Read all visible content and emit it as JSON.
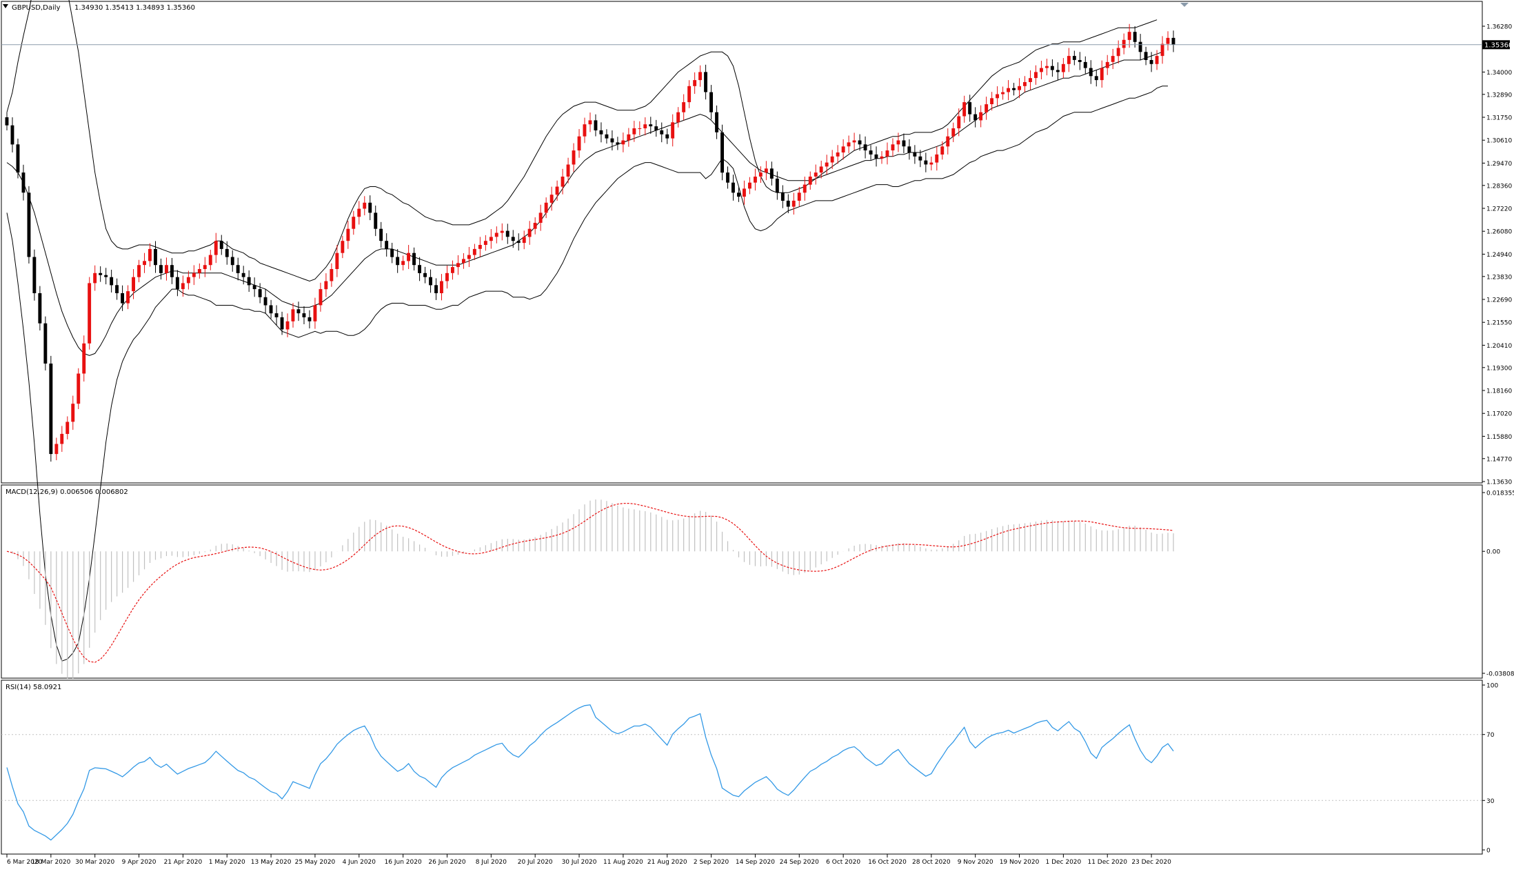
{
  "chart_header": {
    "symbol_label": "GBPUSD,Daily",
    "ohlc_label": "1.34930 1.35413 1.34893 1.35360"
  },
  "macd_header": {
    "label": "MACD(12,26,9) 0.006506 0.006802"
  },
  "rsi_header": {
    "label": "RSI(14) 58.0921"
  },
  "current_price_label": "1.35360",
  "colors": {
    "bull": "#e81010",
    "bear": "#000000",
    "band": "#000000",
    "macd_hist": "#c0c0c0",
    "macd_signal": "#e81010",
    "rsi_line": "#3399e6",
    "level_line": "#c0c0c0",
    "price_line": "#8a9aaa"
  },
  "chart_data": [
    {
      "type": "candlestick",
      "title": "GBPUSD,Daily",
      "x_dates": [
        "2020-03-06",
        "2020-03-09",
        "2020-03-10",
        "2020-03-11",
        "2020-03-12",
        "2020-03-13",
        "2020-03-16",
        "2020-03-17",
        "2020-03-18",
        "2020-03-19",
        "2020-03-20",
        "2020-03-23",
        "2020-03-24",
        "2020-03-25",
        "2020-03-26",
        "2020-03-27",
        "2020-03-30",
        "2020-03-31",
        "2020-04-01",
        "2020-04-02",
        "2020-04-03",
        "2020-04-06",
        "2020-04-07",
        "2020-04-08",
        "2020-04-09",
        "2020-04-10",
        "2020-04-13",
        "2020-04-14",
        "2020-04-15",
        "2020-04-16",
        "2020-04-17",
        "2020-04-20",
        "2020-04-21",
        "2020-04-22",
        "2020-04-23",
        "2020-04-24",
        "2020-04-27",
        "2020-04-28",
        "2020-04-29",
        "2020-04-30",
        "2020-05-01",
        "2020-05-04",
        "2020-05-05",
        "2020-05-06",
        "2020-05-07",
        "2020-05-08",
        "2020-05-11",
        "2020-05-12",
        "2020-05-13",
        "2020-05-14",
        "2020-05-15",
        "2020-05-18",
        "2020-05-19",
        "2020-05-20",
        "2020-05-21",
        "2020-05-22",
        "2020-05-25",
        "2020-05-26",
        "2020-05-27",
        "2020-05-28",
        "2020-05-29",
        "2020-06-01",
        "2020-06-02",
        "2020-06-03",
        "2020-06-04",
        "2020-06-05",
        "2020-06-08",
        "2020-06-09",
        "2020-06-10",
        "2020-06-11",
        "2020-06-12",
        "2020-06-15",
        "2020-06-16",
        "2020-06-17",
        "2020-06-18",
        "2020-06-19",
        "2020-06-22",
        "2020-06-23",
        "2020-06-24",
        "2020-06-25",
        "2020-06-26",
        "2020-06-29",
        "2020-06-30",
        "2020-07-01",
        "2020-07-02",
        "2020-07-03",
        "2020-07-06",
        "2020-07-07",
        "2020-07-08",
        "2020-07-09",
        "2020-07-10",
        "2020-07-13",
        "2020-07-14",
        "2020-07-15",
        "2020-07-16",
        "2020-07-17",
        "2020-07-20",
        "2020-07-21",
        "2020-07-22",
        "2020-07-23",
        "2020-07-24",
        "2020-07-27",
        "2020-07-28",
        "2020-07-29",
        "2020-07-30",
        "2020-07-31",
        "2020-08-03",
        "2020-08-04",
        "2020-08-05",
        "2020-08-06",
        "2020-08-07",
        "2020-08-10",
        "2020-08-11",
        "2020-08-12",
        "2020-08-13",
        "2020-08-14",
        "2020-08-17",
        "2020-08-18",
        "2020-08-19",
        "2020-08-20",
        "2020-08-21",
        "2020-08-24",
        "2020-08-25",
        "2020-08-26",
        "2020-08-27",
        "2020-08-28",
        "2020-08-31",
        "2020-09-01",
        "2020-09-02",
        "2020-09-03",
        "2020-09-04",
        "2020-09-07",
        "2020-09-08",
        "2020-09-09",
        "2020-09-10",
        "2020-09-11",
        "2020-09-14",
        "2020-09-15",
        "2020-09-16",
        "2020-09-17",
        "2020-09-18",
        "2020-09-21",
        "2020-09-22",
        "2020-09-23",
        "2020-09-24",
        "2020-09-25",
        "2020-09-28",
        "2020-09-29",
        "2020-09-30",
        "2020-10-01",
        "2020-10-02",
        "2020-10-05",
        "2020-10-06",
        "2020-10-07",
        "2020-10-08",
        "2020-10-09",
        "2020-10-12",
        "2020-10-13",
        "2020-10-14",
        "2020-10-15",
        "2020-10-16",
        "2020-10-19",
        "2020-10-20",
        "2020-10-21",
        "2020-10-22",
        "2020-10-23",
        "2020-10-26",
        "2020-10-27",
        "2020-10-28",
        "2020-10-29",
        "2020-10-30",
        "2020-11-02",
        "2020-11-03",
        "2020-11-04",
        "2020-11-05",
        "2020-11-06",
        "2020-11-09",
        "2020-11-10",
        "2020-11-11",
        "2020-11-12",
        "2020-11-13",
        "2020-11-16",
        "2020-11-17",
        "2020-11-18",
        "2020-11-19",
        "2020-11-20",
        "2020-11-23",
        "2020-11-24",
        "2020-11-25",
        "2020-11-26",
        "2020-11-27",
        "2020-11-30",
        "2020-12-01",
        "2020-12-02",
        "2020-12-03",
        "2020-12-04",
        "2020-12-07",
        "2020-12-08",
        "2020-12-09",
        "2020-12-10",
        "2020-12-11",
        "2020-12-14",
        "2020-12-15",
        "2020-12-16",
        "2020-12-17",
        "2020-12-18",
        "2020-12-21",
        "2020-12-22",
        "2020-12-23",
        "2020-12-24",
        "2020-12-25",
        "2020-12-28",
        "2020-12-29"
      ],
      "close": [
        1.3135,
        1.304,
        1.29,
        1.28,
        1.248,
        1.23,
        1.215,
        1.195,
        1.15,
        1.155,
        1.16,
        1.166,
        1.175,
        1.19,
        1.205,
        1.235,
        1.24,
        1.239,
        1.238,
        1.234,
        1.23,
        1.225,
        1.231,
        1.238,
        1.244,
        1.246,
        1.252,
        1.244,
        1.24,
        1.244,
        1.238,
        1.232,
        1.235,
        1.238,
        1.24,
        1.242,
        1.244,
        1.249,
        1.256,
        1.252,
        1.248,
        1.244,
        1.24,
        1.238,
        1.234,
        1.232,
        1.228,
        1.224,
        1.22,
        1.218,
        1.212,
        1.216,
        1.222,
        1.22,
        1.218,
        1.216,
        1.224,
        1.232,
        1.236,
        1.242,
        1.25,
        1.256,
        1.262,
        1.268,
        1.272,
        1.275,
        1.27,
        1.262,
        1.256,
        1.252,
        1.248,
        1.244,
        1.246,
        1.25,
        1.244,
        1.24,
        1.238,
        1.234,
        1.23,
        1.236,
        1.24,
        1.243,
        1.245,
        1.247,
        1.249,
        1.252,
        1.254,
        1.256,
        1.258,
        1.26,
        1.261,
        1.258,
        1.256,
        1.255,
        1.258,
        1.262,
        1.265,
        1.27,
        1.275,
        1.279,
        1.283,
        1.288,
        1.294,
        1.301,
        1.308,
        1.314,
        1.316,
        1.311,
        1.309,
        1.307,
        1.305,
        1.304,
        1.306,
        1.309,
        1.312,
        1.312,
        1.314,
        1.313,
        1.311,
        1.309,
        1.307,
        1.315,
        1.32,
        1.325,
        1.333,
        1.336,
        1.34,
        1.33,
        1.32,
        1.31,
        1.29,
        1.285,
        1.28,
        1.278,
        1.282,
        1.285,
        1.288,
        1.29,
        1.292,
        1.287,
        1.28,
        1.276,
        1.273,
        1.276,
        1.28,
        1.284,
        1.288,
        1.29,
        1.293,
        1.295,
        1.298,
        1.3,
        1.303,
        1.305,
        1.306,
        1.304,
        1.301,
        1.299,
        1.297,
        1.298,
        1.301,
        1.304,
        1.306,
        1.303,
        1.3,
        1.298,
        1.296,
        1.294,
        1.295,
        1.299,
        1.303,
        1.308,
        1.312,
        1.318,
        1.325,
        1.319,
        1.316,
        1.32,
        1.324,
        1.327,
        1.329,
        1.33,
        1.332,
        1.331,
        1.333,
        1.335,
        1.337,
        1.34,
        1.342,
        1.343,
        1.341,
        1.34,
        1.344,
        1.348,
        1.346,
        1.345,
        1.342,
        1.338,
        1.336,
        1.342,
        1.345,
        1.348,
        1.352,
        1.356,
        1.36,
        1.355,
        1.35,
        1.346,
        1.344,
        1.348,
        1.354,
        1.357,
        1.3536
      ],
      "bollinger_upper": [
        1.32,
        1.33,
        1.345,
        1.358,
        1.37,
        1.385,
        1.4,
        1.41,
        1.41,
        1.405,
        1.395,
        1.38,
        1.365,
        1.35,
        1.33,
        1.31,
        1.29,
        1.275,
        1.262,
        1.256,
        1.253,
        1.252,
        1.252,
        1.253,
        1.254,
        1.254,
        1.254,
        1.253,
        1.252,
        1.251,
        1.25,
        1.25,
        1.25,
        1.251,
        1.251,
        1.252,
        1.253,
        1.254,
        1.256,
        1.256,
        1.254,
        1.252,
        1.251,
        1.25,
        1.248,
        1.247,
        1.245,
        1.244,
        1.243,
        1.242,
        1.241,
        1.24,
        1.239,
        1.238,
        1.237,
        1.236,
        1.237,
        1.24,
        1.243,
        1.247,
        1.253,
        1.26,
        1.267,
        1.273,
        1.278,
        1.282,
        1.283,
        1.283,
        1.282,
        1.28,
        1.279,
        1.277,
        1.275,
        1.274,
        1.272,
        1.27,
        1.268,
        1.267,
        1.266,
        1.266,
        1.265,
        1.264,
        1.264,
        1.264,
        1.264,
        1.265,
        1.266,
        1.267,
        1.269,
        1.271,
        1.273,
        1.276,
        1.28,
        1.284,
        1.288,
        1.293,
        1.298,
        1.303,
        1.308,
        1.312,
        1.316,
        1.319,
        1.321,
        1.323,
        1.324,
        1.325,
        1.325,
        1.325,
        1.324,
        1.323,
        1.322,
        1.321,
        1.321,
        1.321,
        1.321,
        1.322,
        1.323,
        1.325,
        1.328,
        1.331,
        1.334,
        1.337,
        1.34,
        1.342,
        1.344,
        1.346,
        1.348,
        1.349,
        1.35,
        1.35,
        1.35,
        1.348,
        1.343,
        1.333,
        1.32,
        1.307,
        1.296,
        1.288,
        1.283,
        1.281,
        1.28,
        1.28,
        1.28,
        1.281,
        1.282,
        1.283,
        1.285,
        1.287,
        1.289,
        1.291,
        1.293,
        1.295,
        1.297,
        1.299,
        1.301,
        1.302,
        1.303,
        1.304,
        1.305,
        1.306,
        1.307,
        1.308,
        1.308,
        1.309,
        1.309,
        1.31,
        1.31,
        1.31,
        1.31,
        1.311,
        1.312,
        1.314,
        1.317,
        1.32,
        1.323,
        1.326,
        1.329,
        1.332,
        1.335,
        1.338,
        1.34,
        1.342,
        1.343,
        1.344,
        1.345,
        1.347,
        1.349,
        1.351,
        1.352,
        1.353,
        1.354,
        1.354,
        1.355,
        1.355,
        1.355,
        1.355,
        1.356,
        1.357,
        1.358,
        1.359,
        1.36,
        1.361,
        1.362,
        1.362,
        1.362,
        1.362,
        1.363,
        1.364,
        1.365,
        1.366
      ],
      "bollinger_middle": [
        1.295,
        1.293,
        1.29,
        1.285,
        1.278,
        1.27,
        1.26,
        1.25,
        1.24,
        1.23,
        1.221,
        1.214,
        1.208,
        1.203,
        1.2,
        1.199,
        1.2,
        1.204,
        1.209,
        1.215,
        1.22,
        1.224,
        1.227,
        1.23,
        1.232,
        1.234,
        1.236,
        1.238,
        1.239,
        1.24,
        1.241,
        1.241,
        1.24,
        1.24,
        1.24,
        1.24,
        1.24,
        1.24,
        1.24,
        1.24,
        1.239,
        1.238,
        1.237,
        1.236,
        1.235,
        1.234,
        1.233,
        1.232,
        1.23,
        1.228,
        1.226,
        1.225,
        1.224,
        1.223,
        1.223,
        1.223,
        1.224,
        1.225,
        1.227,
        1.229,
        1.232,
        1.235,
        1.238,
        1.241,
        1.244,
        1.247,
        1.249,
        1.251,
        1.252,
        1.252,
        1.252,
        1.251,
        1.25,
        1.249,
        1.248,
        1.247,
        1.246,
        1.245,
        1.244,
        1.244,
        1.244,
        1.244,
        1.244,
        1.245,
        1.246,
        1.247,
        1.248,
        1.249,
        1.25,
        1.251,
        1.252,
        1.253,
        1.254,
        1.256,
        1.258,
        1.26,
        1.263,
        1.266,
        1.27,
        1.274,
        1.278,
        1.282,
        1.286,
        1.29,
        1.293,
        1.296,
        1.298,
        1.3,
        1.301,
        1.302,
        1.303,
        1.304,
        1.305,
        1.306,
        1.307,
        1.308,
        1.309,
        1.31,
        1.311,
        1.312,
        1.313,
        1.314,
        1.315,
        1.316,
        1.317,
        1.318,
        1.319,
        1.318,
        1.316,
        1.313,
        1.31,
        1.307,
        1.304,
        1.301,
        1.298,
        1.295,
        1.293,
        1.291,
        1.29,
        1.289,
        1.288,
        1.287,
        1.286,
        1.286,
        1.286,
        1.286,
        1.286,
        1.287,
        1.288,
        1.289,
        1.29,
        1.291,
        1.292,
        1.293,
        1.294,
        1.295,
        1.296,
        1.296,
        1.297,
        1.297,
        1.298,
        1.298,
        1.299,
        1.299,
        1.3,
        1.3,
        1.3,
        1.301,
        1.302,
        1.303,
        1.304,
        1.306,
        1.308,
        1.31,
        1.312,
        1.314,
        1.316,
        1.318,
        1.32,
        1.322,
        1.323,
        1.324,
        1.325,
        1.326,
        1.328,
        1.33,
        1.331,
        1.332,
        1.333,
        1.334,
        1.335,
        1.336,
        1.337,
        1.337,
        1.338,
        1.338,
        1.339,
        1.34,
        1.341,
        1.342,
        1.343,
        1.344,
        1.345,
        1.346,
        1.346,
        1.346,
        1.346,
        1.347,
        1.348,
        1.349,
        1.35
      ],
      "bollinger_lower": [
        1.27,
        1.256,
        1.235,
        1.212,
        1.186,
        1.155,
        1.12,
        1.09,
        1.07,
        1.055,
        1.047,
        1.048,
        1.051,
        1.056,
        1.07,
        1.088,
        1.11,
        1.133,
        1.156,
        1.174,
        1.187,
        1.196,
        1.202,
        1.207,
        1.21,
        1.214,
        1.218,
        1.223,
        1.226,
        1.229,
        1.232,
        1.232,
        1.23,
        1.229,
        1.229,
        1.228,
        1.227,
        1.226,
        1.224,
        1.224,
        1.224,
        1.224,
        1.223,
        1.222,
        1.222,
        1.221,
        1.221,
        1.22,
        1.217,
        1.214,
        1.211,
        1.21,
        1.209,
        1.208,
        1.209,
        1.21,
        1.211,
        1.21,
        1.211,
        1.211,
        1.211,
        1.21,
        1.209,
        1.209,
        1.21,
        1.212,
        1.215,
        1.219,
        1.222,
        1.224,
        1.225,
        1.225,
        1.225,
        1.224,
        1.224,
        1.224,
        1.224,
        1.223,
        1.222,
        1.222,
        1.223,
        1.224,
        1.224,
        1.226,
        1.228,
        1.229,
        1.23,
        1.231,
        1.231,
        1.231,
        1.231,
        1.23,
        1.228,
        1.228,
        1.228,
        1.227,
        1.228,
        1.229,
        1.232,
        1.236,
        1.24,
        1.245,
        1.251,
        1.257,
        1.262,
        1.267,
        1.271,
        1.275,
        1.278,
        1.281,
        1.284,
        1.287,
        1.289,
        1.291,
        1.293,
        1.294,
        1.295,
        1.295,
        1.294,
        1.293,
        1.292,
        1.291,
        1.29,
        1.29,
        1.29,
        1.29,
        1.29,
        1.287,
        1.289,
        1.293,
        1.297,
        1.295,
        1.292,
        1.283,
        1.273,
        1.266,
        1.262,
        1.261,
        1.262,
        1.264,
        1.267,
        1.269,
        1.271,
        1.272,
        1.273,
        1.274,
        1.275,
        1.276,
        1.276,
        1.276,
        1.276,
        1.277,
        1.278,
        1.279,
        1.28,
        1.281,
        1.282,
        1.283,
        1.284,
        1.284,
        1.284,
        1.283,
        1.283,
        1.284,
        1.285,
        1.286,
        1.286,
        1.287,
        1.287,
        1.287,
        1.287,
        1.288,
        1.289,
        1.291,
        1.293,
        1.295,
        1.296,
        1.298,
        1.299,
        1.3,
        1.301,
        1.301,
        1.302,
        1.303,
        1.304,
        1.306,
        1.308,
        1.31,
        1.311,
        1.312,
        1.314,
        1.316,
        1.318,
        1.319,
        1.32,
        1.32,
        1.32,
        1.32,
        1.321,
        1.322,
        1.323,
        1.324,
        1.325,
        1.326,
        1.327,
        1.327,
        1.328,
        1.329,
        1.33,
        1.332,
        1.333,
        1.333
      ],
      "y_ticks": [
        "1.36280",
        "1.35360",
        "1.34000",
        "1.32890",
        "1.31750",
        "1.30610",
        "1.29470",
        "1.28360",
        "1.27220",
        "1.26080",
        "1.24940",
        "1.23830",
        "1.22690",
        "1.21550",
        "1.20410",
        "1.19300",
        "1.18160",
        "1.17020",
        "1.15880",
        "1.14770",
        "1.13630"
      ],
      "x_ticks": [
        "6 Mar 2020",
        "18 Mar 2020",
        "30 Mar 2020",
        "9 Apr 2020",
        "21 Apr 2020",
        "1 May 2020",
        "13 May 2020",
        "25 May 2020",
        "4 Jun 2020",
        "16 Jun 2020",
        "26 Jun 2020",
        "8 Jul 2020",
        "20 Jul 2020",
        "30 Jul 2020",
        "11 Aug 2020",
        "21 Aug 2020",
        "2 Sep 2020",
        "14 Sep 2020",
        "24 Sep 2020",
        "6 Oct 2020",
        "16 Oct 2020",
        "28 Oct 2020",
        "9 Nov 2020",
        "19 Nov 2020",
        "1 Dec 2020",
        "11 Dec 2020",
        "23 Dec 2020"
      ],
      "ylim": [
        1.1363,
        1.3628
      ],
      "current_price": 1.3536,
      "grid": false
    },
    {
      "type": "bar",
      "title": "MACD(12,26,9)",
      "y_ticks": [
        "0.018355",
        "0.00",
        "-0.03808"
      ],
      "ylim": [
        -0.03808,
        0.018355
      ],
      "grid": false
    },
    {
      "type": "line",
      "title": "RSI(14)",
      "y_ticks": [
        "100",
        "70",
        "30",
        "0"
      ],
      "ylim": [
        0,
        100
      ],
      "levels": [
        70,
        30
      ],
      "grid": false
    }
  ]
}
